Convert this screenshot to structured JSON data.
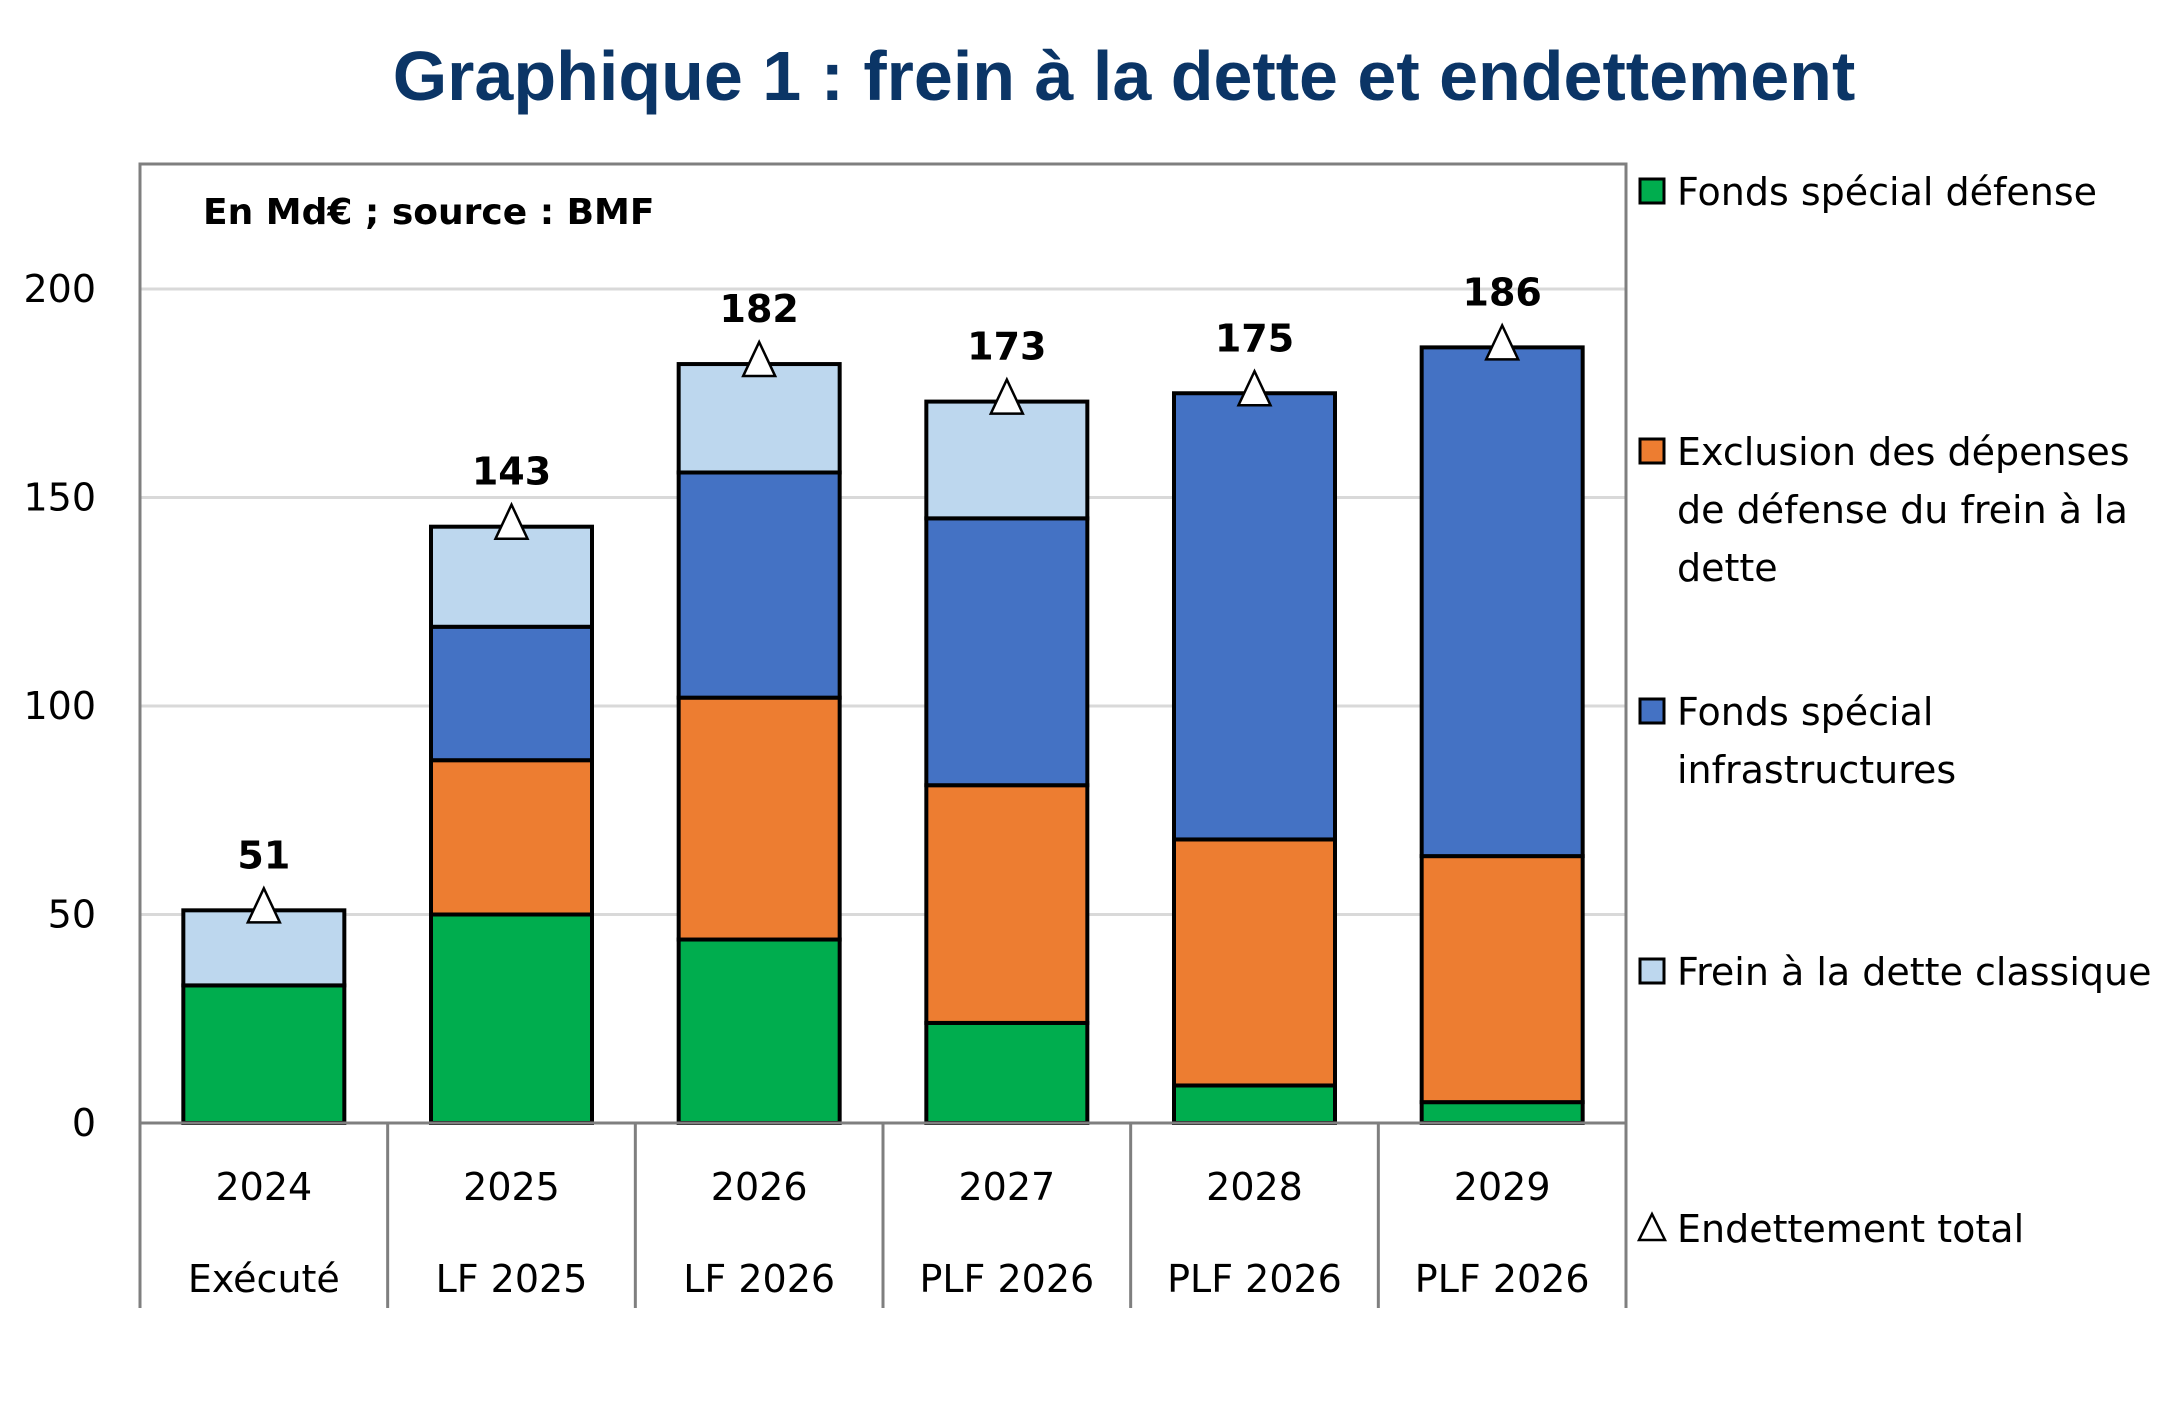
{
  "chart_data": {
    "type": "bar",
    "stacked": true,
    "title": "Graphique 1 : frein à la dette et endettement",
    "annotation": "En Md€ ; source : BMF",
    "categories": [
      "2024",
      "2025",
      "2026",
      "2027",
      "2028",
      "2029"
    ],
    "subcategories": [
      "Exécuté",
      "LF 2025",
      "LF 2026",
      "PLF 2026",
      "PLF 2026",
      "PLF 2026"
    ],
    "ylim": [
      0,
      230
    ],
    "yticks": [
      0,
      50,
      100,
      150,
      200
    ],
    "grid": true,
    "legend_position": "right",
    "series": [
      {
        "name": "Frein à la dette classique",
        "color": "#00ad4e",
        "values": [
          33,
          50,
          44,
          24,
          9,
          5
        ]
      },
      {
        "name": "Fonds spécial infrastructures",
        "color": "#ed7d31",
        "values": [
          0,
          37,
          58,
          57,
          59,
          59
        ]
      },
      {
        "name": "Exclusion des dépenses de défense du frein à la dette",
        "color": "#4472c4",
        "values": [
          0,
          32,
          54,
          64,
          107,
          122
        ]
      },
      {
        "name": "Fonds spécial défense",
        "color": "#bdd7ee",
        "values": [
          18,
          24,
          26,
          28,
          0,
          0
        ]
      }
    ],
    "total": {
      "name": "Endettement total",
      "marker": "triangle",
      "values": [
        51,
        143,
        182,
        173,
        175,
        186
      ]
    },
    "legend_order": [
      3,
      2,
      1,
      0
    ],
    "legend_lines": {
      "0": [
        "Fonds spécial défense"
      ],
      "1": [
        "Exclusion des dépenses",
        "de défense du frein à la",
        "dette"
      ],
      "2": [
        "Fonds spécial",
        "infrastructures"
      ],
      "3": [
        "Frein à la dette classique"
      ]
    }
  }
}
